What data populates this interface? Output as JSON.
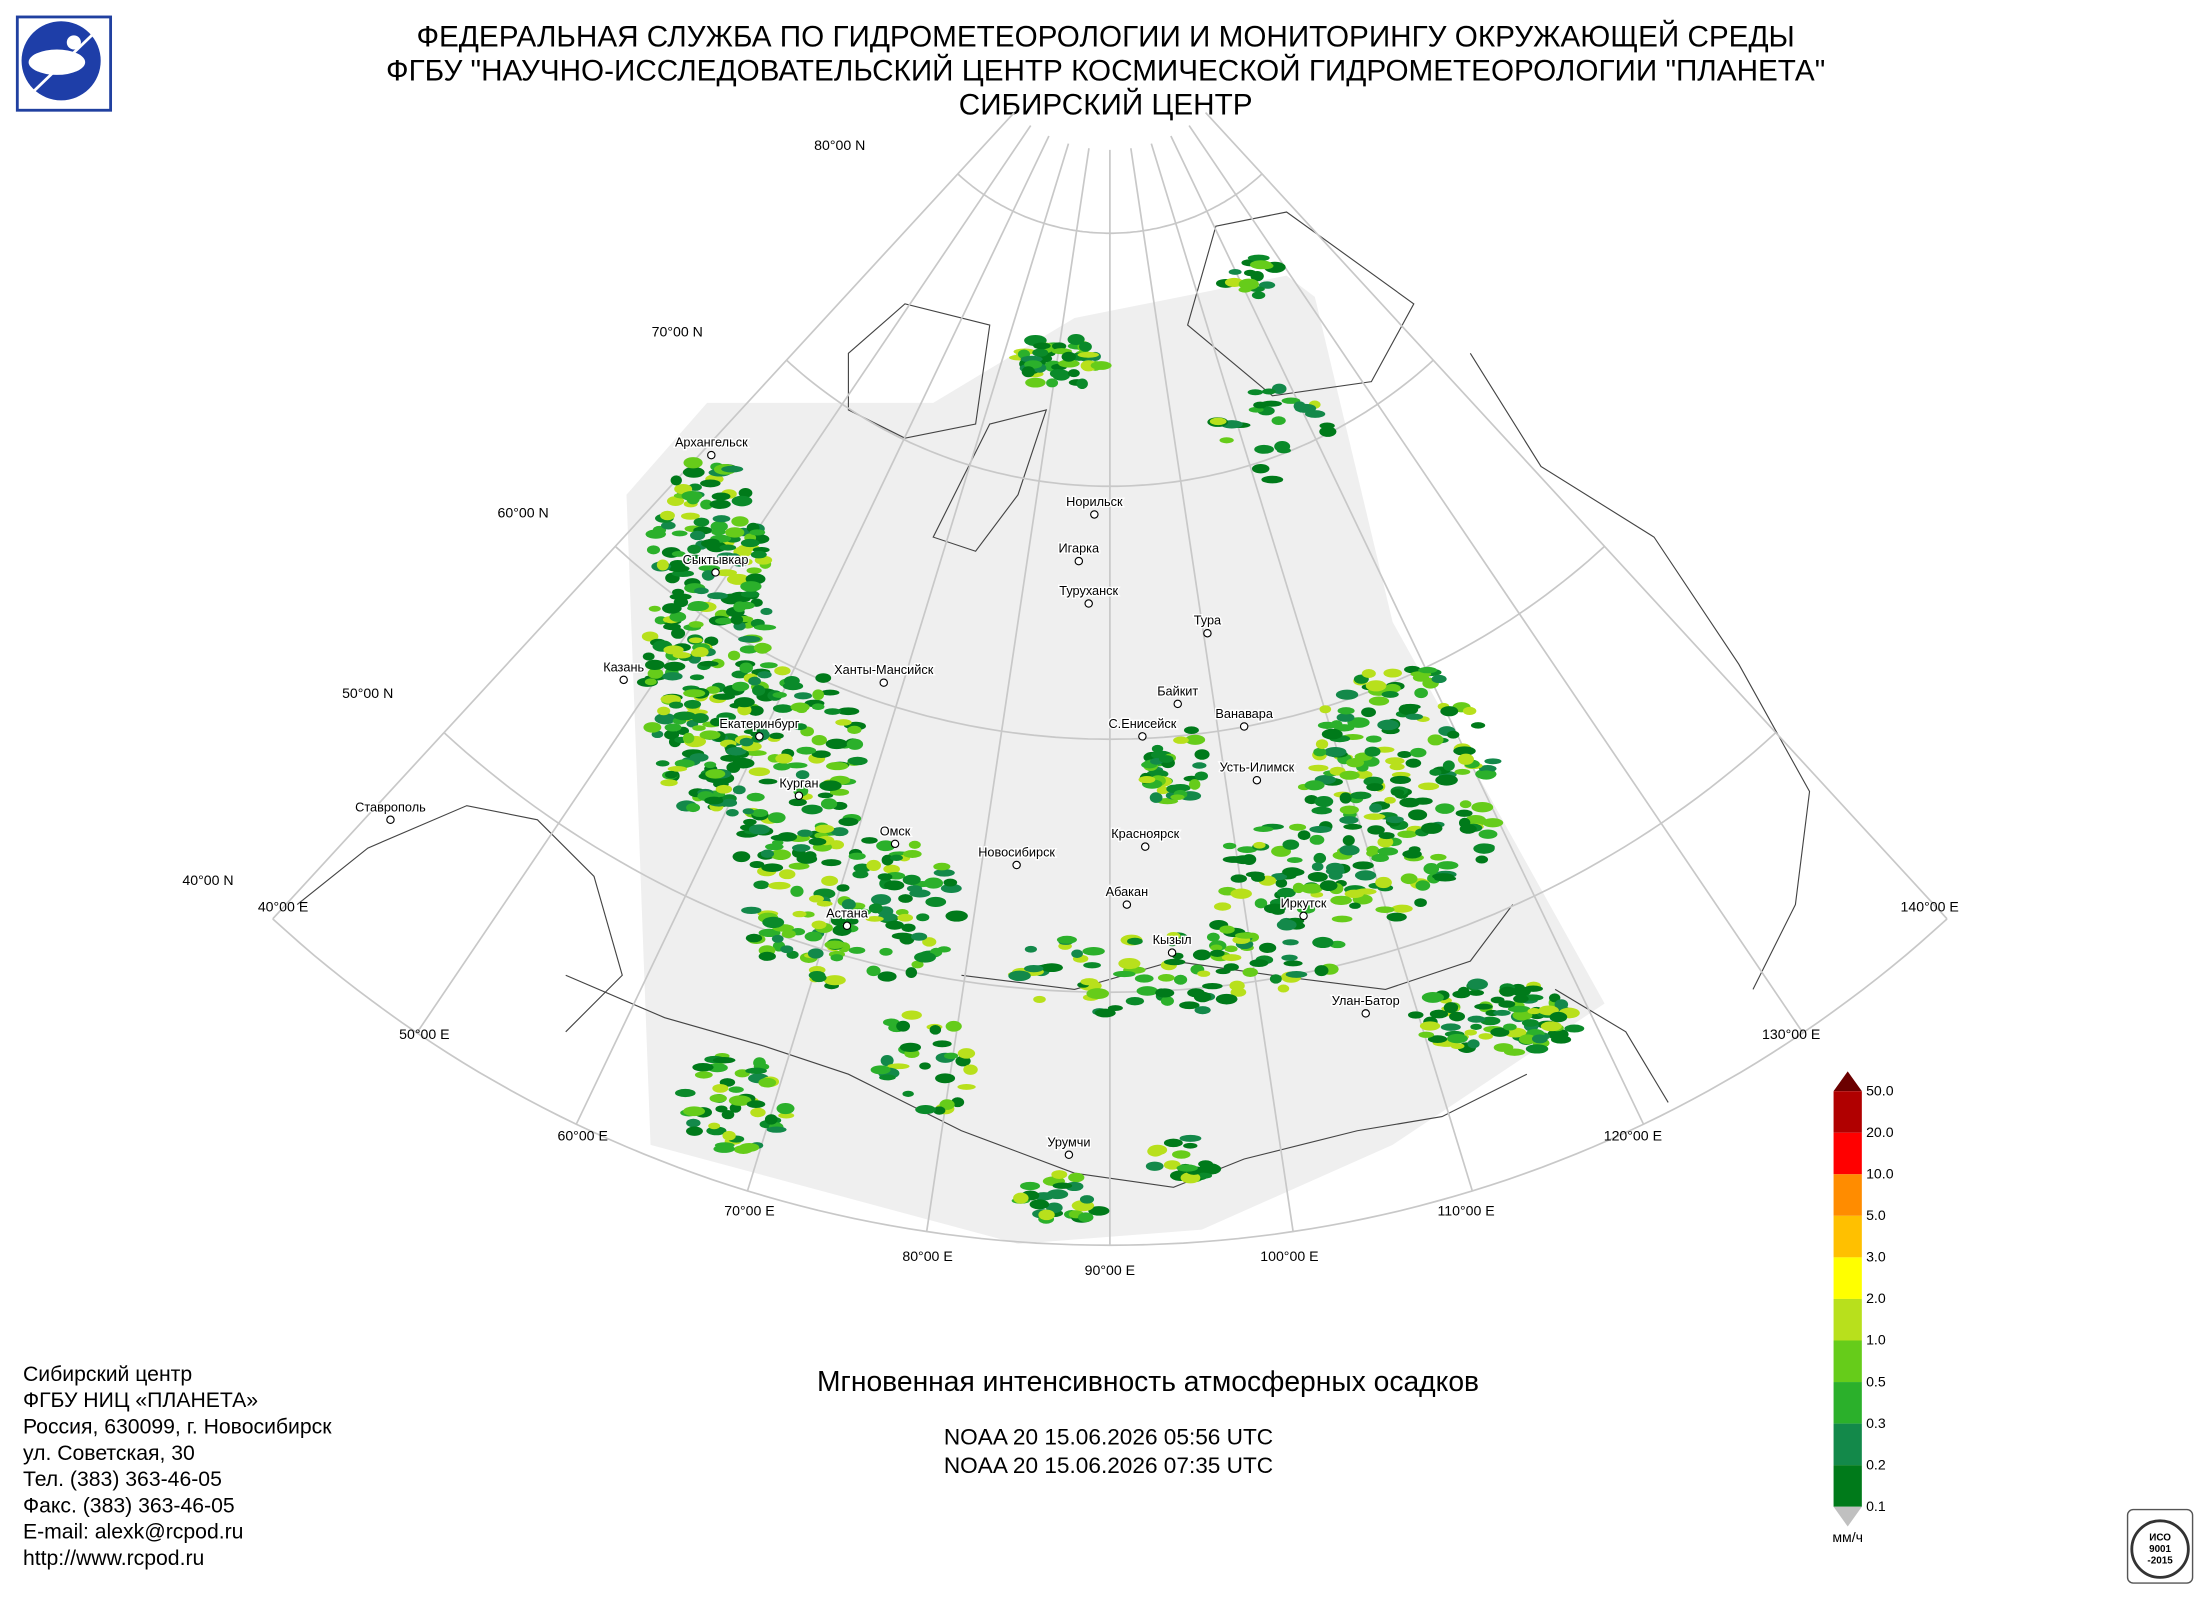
{
  "header": {
    "lines": [
      "ФЕДЕРАЛЬНАЯ СЛУЖБА ПО ГИДРОМЕТЕОРОЛОГИИ И МОНИТОРИНГУ ОКРУЖАЮЩЕЙ СРЕДЫ",
      "ФГБУ \"НАУЧНО-ИССЛЕДОВАТЕЛЬСКИЙ ЦЕНТР КОСМИЧЕСКОЙ ГИДРОМЕТЕОРОЛОГИИ \"ПЛАНЕТА\"",
      "СИБИРСКИЙ ЦЕНТР"
    ]
  },
  "map": {
    "lat_labels": [
      "80°00 N",
      "70°00 N",
      "60°00 N",
      "50°00 N",
      "40°00 N"
    ],
    "lon_labels": [
      "40°00 E",
      "50°00 E",
      "60°00 E",
      "70°00 E",
      "80°00 E",
      "90°00 E",
      "100°00 E",
      "110°00 E",
      "120°00 E",
      "130°00 E",
      "140°00 E"
    ],
    "cities": [
      "Архангельск",
      "Сыктывкар",
      "Казань",
      "Ханты-Мансийск",
      "Екатеринбург",
      "Курган",
      "Ставрополь",
      "Омск",
      "Астана",
      "Новосибирск",
      "Норильск",
      "Игарка",
      "Туруханск",
      "Тура",
      "Байкит",
      "Ванавара",
      "С.Енисейск",
      "Усть-Илимск",
      "Красноярск",
      "Абакан",
      "Иркутск",
      "Кызыл",
      "Улан-Батор",
      "Урумчи"
    ]
  },
  "legend": {
    "labels": [
      "50.0",
      "20.0",
      "10.0",
      "5.0",
      "3.0",
      "2.0",
      "1.0",
      "0.5",
      "0.3",
      "0.2",
      "0.1"
    ],
    "unit": "мм/ч"
  },
  "caption": {
    "title": "Мгновенная интенсивность атмосферных осадков",
    "passes": [
      "NOAA 20 15.06.2026  05:56 UTC",
      "NOAA 20 15.06.2026  07:35 UTC"
    ]
  },
  "contact": {
    "lines": [
      "Сибирский центр",
      "ФГБУ НИЦ «ПЛАНЕТА»",
      "Россия, 630099, г. Новосибирск",
      "ул. Советская, 30",
      "Тел. (383) 363-46-05",
      "Факс. (383) 363-46-05",
      "E-mail: alexk@rcpod.ru",
      "http://www.rcpod.ru"
    ]
  },
  "certificate": {
    "lines": [
      "ИСО",
      "9001",
      "-2015"
    ]
  }
}
